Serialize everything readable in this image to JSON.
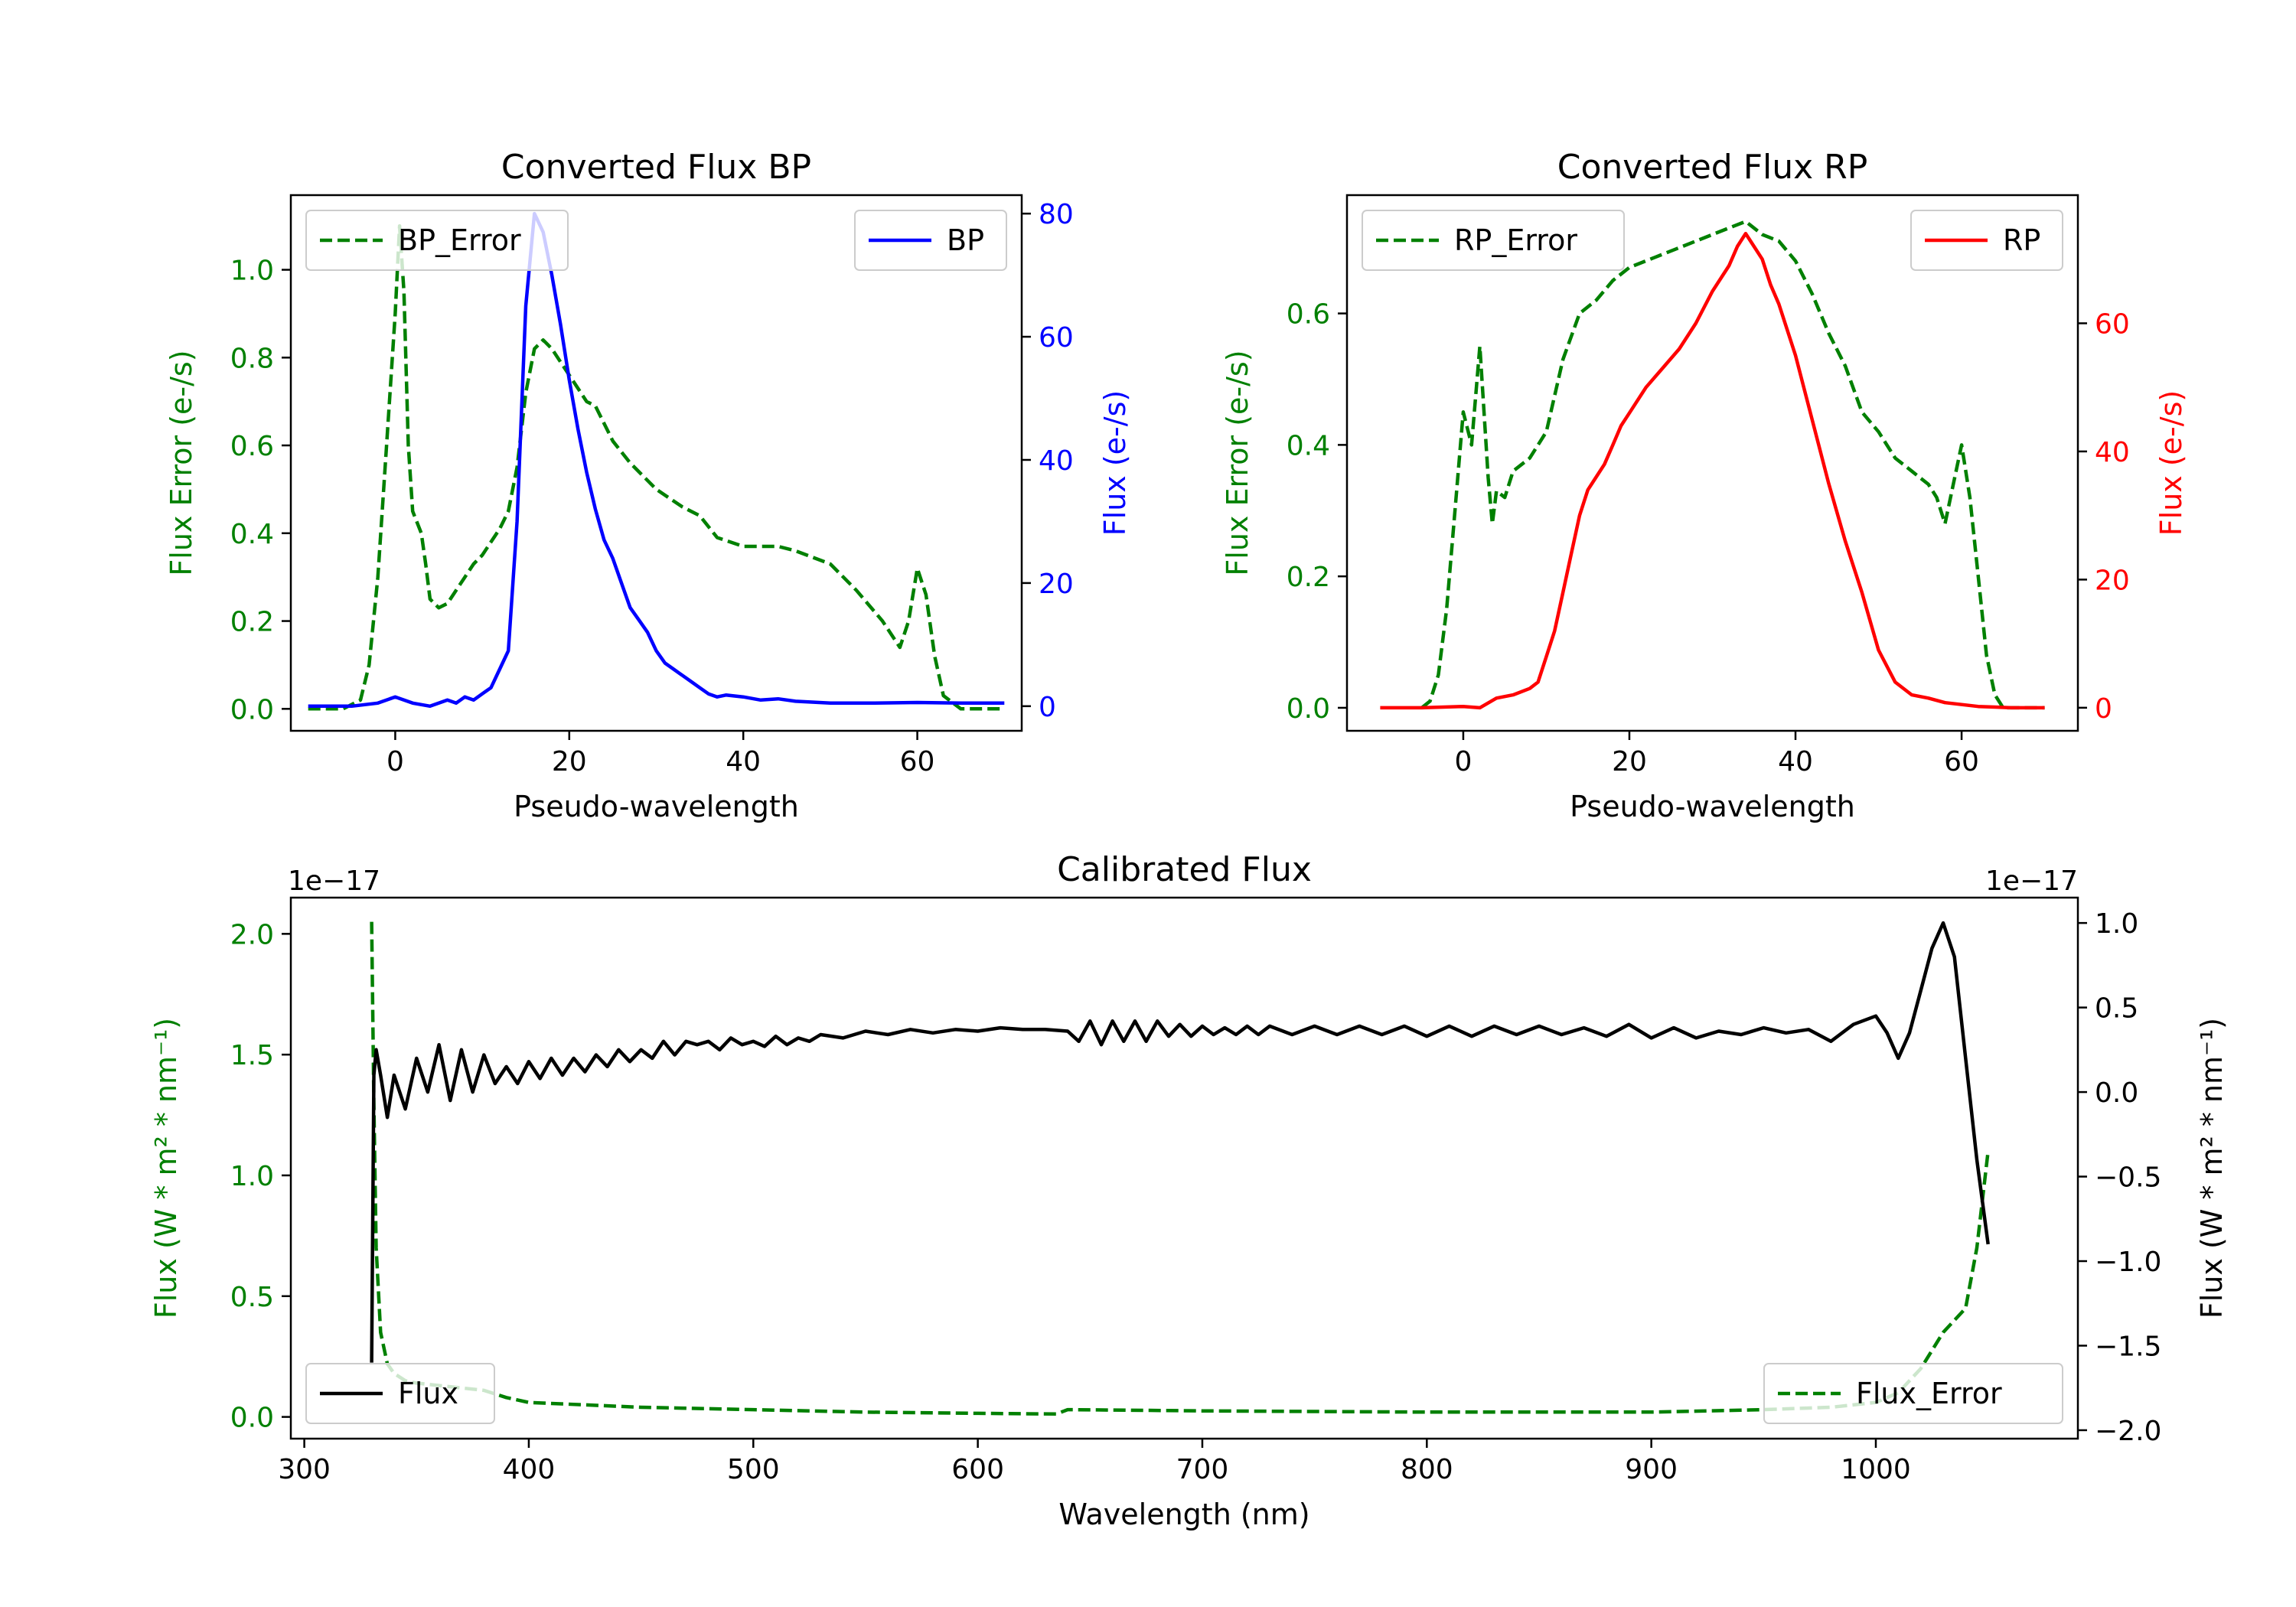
{
  "colors": {
    "error": "#008000",
    "bp": "#0000ff",
    "rp": "#ff0000",
    "flux": "#000000"
  },
  "chart_data": [
    {
      "id": "bp",
      "type": "line",
      "title": "Converted Flux BP",
      "xlabel": "Pseudo-wavelength",
      "ylabel_left": "Flux Error (e-/s)",
      "ylabel_right": "Flux (e-/s)",
      "xlim": [
        -12,
        72
      ],
      "ylim_left": [
        -0.05,
        1.17
      ],
      "ylim_right": [
        -4,
        83
      ],
      "xticks": [
        0,
        20,
        40,
        60
      ],
      "xtick_labels": [
        "0",
        "20",
        "40",
        "60"
      ],
      "yticks_left": [
        0.0,
        0.2,
        0.4,
        0.6,
        0.8,
        1.0
      ],
      "ytick_labels_left": [
        "0.0",
        "0.2",
        "0.4",
        "0.6",
        "0.8",
        "1.0"
      ],
      "yticks_right": [
        0,
        20,
        40,
        60,
        80
      ],
      "ytick_labels_right": [
        "0",
        "20",
        "40",
        "60",
        "80"
      ],
      "legend_left": {
        "label": "BP_Error",
        "position": "upper-left"
      },
      "legend_right": {
        "label": "BP",
        "position": "upper-right"
      },
      "series": [
        {
          "name": "BP_Error",
          "axis": "left",
          "style": "dashed",
          "color_key": "error",
          "x": [
            -10,
            -6,
            -4,
            -3,
            -2,
            -1,
            0,
            0.5,
            1,
            1.5,
            2,
            3,
            3.5,
            4,
            5,
            6,
            7,
            8,
            9,
            10,
            11,
            12,
            13,
            14,
            15,
            16,
            17,
            18,
            19,
            20,
            21,
            22,
            23,
            25,
            27,
            30,
            33,
            35,
            37,
            40,
            42,
            44,
            46,
            50,
            53,
            56,
            58,
            59,
            60,
            61,
            62,
            63,
            65,
            70
          ],
          "y": [
            0.0,
            0.0,
            0.02,
            0.1,
            0.3,
            0.6,
            0.9,
            1.1,
            0.95,
            0.6,
            0.45,
            0.4,
            0.33,
            0.25,
            0.23,
            0.24,
            0.27,
            0.3,
            0.33,
            0.35,
            0.38,
            0.41,
            0.45,
            0.55,
            0.72,
            0.82,
            0.84,
            0.82,
            0.79,
            0.76,
            0.73,
            0.7,
            0.69,
            0.61,
            0.56,
            0.5,
            0.46,
            0.44,
            0.39,
            0.37,
            0.37,
            0.37,
            0.36,
            0.33,
            0.27,
            0.2,
            0.14,
            0.2,
            0.32,
            0.26,
            0.12,
            0.03,
            0.0,
            0.0
          ]
        },
        {
          "name": "BP",
          "axis": "right",
          "style": "solid",
          "color_key": "bp",
          "x": [
            -10,
            -5,
            -2,
            0,
            2,
            4,
            5,
            6,
            7,
            8,
            9,
            10,
            11,
            12,
            13,
            14,
            15,
            16,
            17,
            18,
            19,
            20,
            21,
            22,
            23,
            24,
            25,
            26,
            27,
            28,
            29,
            30,
            31,
            32,
            33,
            34,
            35,
            36,
            37,
            38,
            40,
            42,
            44,
            46,
            50,
            55,
            60,
            65,
            70
          ],
          "y": [
            0,
            0,
            0.5,
            1.5,
            0.5,
            0,
            0.5,
            1,
            0.5,
            1.5,
            1,
            2,
            3,
            6,
            9,
            30,
            65,
            80,
            77,
            70,
            62,
            53,
            45,
            38,
            32,
            27,
            24,
            20,
            16,
            14,
            12,
            9,
            7,
            6,
            5,
            4,
            3,
            2,
            1.5,
            1.8,
            1.5,
            1,
            1.2,
            0.8,
            0.5,
            0.5,
            0.6,
            0.5,
            0.5
          ]
        }
      ]
    },
    {
      "id": "rp",
      "type": "line",
      "title": "Converted Flux RP",
      "xlabel": "Pseudo-wavelength",
      "ylabel_left": "Flux Error (e-/s)",
      "ylabel_right": "Flux (e-/s)",
      "xlim": [
        -14,
        74
      ],
      "ylim_left": [
        -0.035,
        0.78
      ],
      "ylim_right": [
        -3.6,
        80
      ],
      "xticks": [
        0,
        20,
        40,
        60
      ],
      "xtick_labels": [
        "0",
        "20",
        "40",
        "60"
      ],
      "yticks_left": [
        0.0,
        0.2,
        0.4,
        0.6
      ],
      "ytick_labels_left": [
        "0.0",
        "0.2",
        "0.4",
        "0.6"
      ],
      "yticks_right": [
        0,
        20,
        40,
        60
      ],
      "ytick_labels_right": [
        "0",
        "20",
        "40",
        "60"
      ],
      "legend_left": {
        "label": "RP_Error",
        "position": "upper-left"
      },
      "legend_right": {
        "label": "RP",
        "position": "upper-right"
      },
      "series": [
        {
          "name": "RP_Error",
          "axis": "left",
          "style": "dashed",
          "color_key": "error",
          "x": [
            -5,
            -4,
            -3,
            -2,
            -1,
            0,
            1,
            2,
            3,
            3.5,
            4,
            5,
            6,
            8,
            10,
            12,
            14,
            16,
            18,
            20,
            22,
            24,
            26,
            28,
            30,
            32,
            34,
            36,
            38,
            40,
            42,
            44,
            46,
            48,
            50,
            52,
            54,
            55,
            56,
            57,
            58,
            59,
            60,
            61,
            62,
            63,
            64,
            65,
            68,
            70
          ],
          "y": [
            0.0,
            0.01,
            0.05,
            0.15,
            0.3,
            0.45,
            0.4,
            0.55,
            0.35,
            0.28,
            0.33,
            0.32,
            0.36,
            0.38,
            0.42,
            0.53,
            0.6,
            0.62,
            0.65,
            0.67,
            0.68,
            0.69,
            0.7,
            0.71,
            0.72,
            0.73,
            0.74,
            0.72,
            0.71,
            0.68,
            0.63,
            0.57,
            0.52,
            0.45,
            0.42,
            0.38,
            0.36,
            0.35,
            0.34,
            0.32,
            0.28,
            0.34,
            0.4,
            0.32,
            0.2,
            0.08,
            0.02,
            0.0,
            0.0,
            0.0
          ]
        },
        {
          "name": "RP",
          "axis": "right",
          "style": "solid",
          "color_key": "rp",
          "x": [
            -10,
            -5,
            0,
            2,
            4,
            6,
            8,
            9,
            10,
            11,
            12,
            13,
            14,
            15,
            16,
            17,
            18,
            19,
            20,
            22,
            24,
            26,
            28,
            30,
            32,
            33,
            34,
            35,
            36,
            37,
            38,
            40,
            42,
            44,
            46,
            48,
            50,
            52,
            54,
            56,
            58,
            60,
            62,
            64,
            66,
            70
          ],
          "y": [
            0,
            0,
            0.2,
            0,
            1.5,
            2,
            3,
            4,
            8,
            12,
            18,
            24,
            30,
            34,
            36,
            38,
            41,
            44,
            46,
            50,
            53,
            56,
            60,
            65,
            69,
            72,
            74,
            72,
            70,
            66,
            63,
            55,
            45,
            35,
            26,
            18,
            9,
            4,
            2,
            1.5,
            0.8,
            0.5,
            0.2,
            0.1,
            0,
            0
          ]
        }
      ]
    },
    {
      "id": "cal",
      "type": "line",
      "title": "Calibrated Flux",
      "xlabel": "Wavelength (nm)",
      "ylabel_left": "Flux (W * m² * nm⁻¹)",
      "ylabel_right": "Flux (W * m² * nm⁻¹)",
      "offset_left": "1e−17",
      "offset_right": "1e−17",
      "xlim": [
        294,
        1090
      ],
      "ylim_left": [
        -0.09,
        2.15
      ],
      "ylim_right": [
        -2.05,
        1.15
      ],
      "xticks": [
        300,
        400,
        500,
        600,
        700,
        800,
        900,
        1000
      ],
      "xtick_labels": [
        "300",
        "400",
        "500",
        "600",
        "700",
        "800",
        "900",
        "1000"
      ],
      "yticks_left": [
        0.0,
        0.5,
        1.0,
        1.5,
        2.0
      ],
      "ytick_labels_left": [
        "0.0",
        "0.5",
        "1.0",
        "1.5",
        "2.0"
      ],
      "yticks_right": [
        -2.0,
        -1.5,
        -1.0,
        -0.5,
        0.0,
        0.5,
        1.0
      ],
      "ytick_labels_right": [
        "−2.0",
        "−1.5",
        "−1.0",
        "−0.5",
        "0.0",
        "0.5",
        "1.0"
      ],
      "legend_left": {
        "label": "Flux",
        "position": "lower-left"
      },
      "legend_right": {
        "label": "Flux_Error",
        "position": "lower-right"
      },
      "series": [
        {
          "name": "Flux_Error",
          "axis": "left",
          "style": "dashed",
          "color_key": "error",
          "x": [
            330,
            331,
            332,
            334,
            337,
            340,
            345,
            350,
            360,
            370,
            380,
            390,
            400,
            450,
            500,
            550,
            600,
            635,
            640,
            700,
            800,
            900,
            950,
            980,
            1000,
            1010,
            1020,
            1030,
            1040,
            1045,
            1050
          ],
          "y": [
            2.05,
            1.3,
            0.7,
            0.35,
            0.22,
            0.18,
            0.15,
            0.14,
            0.13,
            0.12,
            0.11,
            0.08,
            0.06,
            0.04,
            0.03,
            0.02,
            0.015,
            0.012,
            0.03,
            0.025,
            0.02,
            0.02,
            0.03,
            0.04,
            0.06,
            0.1,
            0.2,
            0.35,
            0.45,
            0.7,
            1.1
          ]
        },
        {
          "name": "Flux",
          "axis": "right",
          "style": "solid",
          "color_key": "flux",
          "x": [
            330,
            331,
            332,
            334,
            337,
            340,
            345,
            350,
            355,
            360,
            365,
            370,
            375,
            380,
            385,
            390,
            395,
            400,
            405,
            410,
            415,
            420,
            425,
            430,
            435,
            440,
            445,
            450,
            455,
            460,
            465,
            470,
            475,
            480,
            485,
            490,
            495,
            500,
            505,
            510,
            515,
            520,
            525,
            530,
            540,
            550,
            560,
            570,
            580,
            590,
            600,
            610,
            620,
            630,
            640,
            645,
            650,
            655,
            660,
            665,
            670,
            675,
            680,
            685,
            690,
            695,
            700,
            705,
            710,
            715,
            720,
            725,
            730,
            740,
            750,
            760,
            770,
            780,
            790,
            800,
            810,
            820,
            830,
            840,
            850,
            860,
            870,
            880,
            890,
            900,
            910,
            920,
            930,
            940,
            950,
            960,
            970,
            980,
            990,
            1000,
            1005,
            1010,
            1015,
            1020,
            1025,
            1030,
            1035,
            1040,
            1045,
            1050
          ],
          "y": [
            -1.6,
            0.1,
            0.25,
            0.1,
            -0.15,
            0.1,
            -0.1,
            0.2,
            0.0,
            0.28,
            -0.05,
            0.25,
            0.0,
            0.22,
            0.05,
            0.15,
            0.05,
            0.18,
            0.08,
            0.2,
            0.1,
            0.2,
            0.12,
            0.22,
            0.15,
            0.25,
            0.18,
            0.25,
            0.2,
            0.3,
            0.22,
            0.3,
            0.28,
            0.3,
            0.25,
            0.32,
            0.28,
            0.3,
            0.27,
            0.33,
            0.28,
            0.32,
            0.3,
            0.34,
            0.32,
            0.36,
            0.34,
            0.37,
            0.35,
            0.37,
            0.36,
            0.38,
            0.37,
            0.37,
            0.36,
            0.3,
            0.42,
            0.28,
            0.42,
            0.3,
            0.42,
            0.3,
            0.42,
            0.33,
            0.4,
            0.33,
            0.39,
            0.34,
            0.38,
            0.34,
            0.39,
            0.34,
            0.39,
            0.34,
            0.39,
            0.34,
            0.39,
            0.34,
            0.39,
            0.33,
            0.39,
            0.33,
            0.39,
            0.34,
            0.39,
            0.34,
            0.38,
            0.33,
            0.4,
            0.32,
            0.38,
            0.32,
            0.36,
            0.34,
            0.38,
            0.35,
            0.37,
            0.3,
            0.4,
            0.45,
            0.35,
            0.2,
            0.35,
            0.6,
            0.85,
            1.0,
            0.8,
            0.2,
            -0.4,
            -0.9
          ]
        }
      ]
    }
  ]
}
